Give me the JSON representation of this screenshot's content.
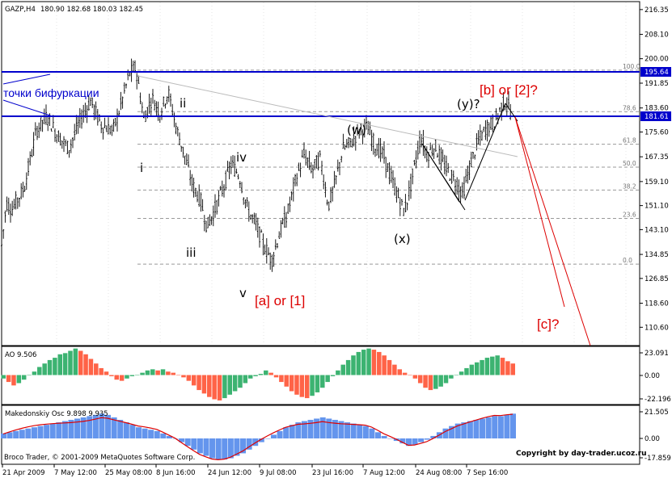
{
  "header": {
    "symbol": "GAZP,H4",
    "ohlc": "180.90 182.68 180.03 182.45"
  },
  "price_axis": {
    "ticks": [
      "216.35",
      "208.10",
      "200.00",
      "191.85",
      "183.60",
      "175.60",
      "167.35",
      "159.10",
      "151.10",
      "143.10",
      "134.85",
      "126.85",
      "118.60",
      "110.60"
    ],
    "tag_upper": "195.64",
    "tag_lower": "181.61"
  },
  "time_axis": [
    "21 Apr 2009",
    "7 May 12:00",
    "25 May 08:00",
    "8 Jun 16:00",
    "24 Jun 12:00",
    "9 Jul 08:00",
    "23 Jul 16:00",
    "7 Aug 12:00",
    "24 Aug 08:00",
    "7 Sep 16:00"
  ],
  "fib_levels": [
    "100.0",
    "78.6",
    "61.8",
    "50.0",
    "38.2",
    "23.6",
    "0.0"
  ],
  "annotations": {
    "bifurcation": "точки бифуркации",
    "wave_i": "i",
    "wave_ii": "ii",
    "wave_iii": "iii",
    "wave_iv": "iv",
    "wave_v": "v",
    "wave_w": "(w)",
    "wave_x": "(x)",
    "wave_y": "(y)?",
    "label_a1": "[a] or [1]",
    "label_b2": "[b] or [2]?",
    "label_c": "[c]?"
  },
  "ao_panel": {
    "title": "AO 9.506",
    "ticks": [
      "23.091",
      "0.00",
      "-22.196"
    ]
  },
  "mk_panel": {
    "title": "Makedonskiy Osc 9.898 9.935",
    "ticks": [
      "21.505",
      "0.00",
      "-17.859"
    ]
  },
  "footer": {
    "broker": "Broco Trader, © 2001-2009 MetaQuotes Software Corp.",
    "copyright": "Copyright by day-trader.ucoz.ru"
  },
  "colors": {
    "background": "#ffffff",
    "candles": "#000000",
    "ao_up": "#3cb371",
    "ao_down": "#ff6347",
    "osc_hist": "#6495ed",
    "osc_signal": "#dd0000",
    "bifurcation_lines": "#0000cc",
    "annotation_red": "#dd0000"
  },
  "chart_data": {
    "type": "candlestick",
    "title": "GAZP,H4",
    "ylim": [
      104.5,
      219.0
    ],
    "price_points": [
      [
        0,
        133
      ],
      [
        8,
        152
      ],
      [
        15,
        150
      ],
      [
        30,
        157
      ],
      [
        45,
        176
      ],
      [
        58,
        181
      ],
      [
        70,
        175
      ],
      [
        85,
        170
      ],
      [
        100,
        180
      ],
      [
        112,
        186
      ],
      [
        125,
        178
      ],
      [
        140,
        176
      ],
      [
        150,
        185
      ],
      [
        160,
        195
      ],
      [
        168,
        197
      ],
      [
        178,
        180
      ],
      [
        188,
        187
      ],
      [
        198,
        182
      ],
      [
        208,
        189
      ],
      [
        218,
        177
      ],
      [
        228,
        168
      ],
      [
        238,
        158
      ],
      [
        248,
        153
      ],
      [
        256,
        144
      ],
      [
        266,
        150
      ],
      [
        276,
        157
      ],
      [
        286,
        165
      ],
      [
        296,
        161
      ],
      [
        306,
        150
      ],
      [
        316,
        145
      ],
      [
        326,
        138
      ],
      [
        336,
        133
      ],
      [
        346,
        142
      ],
      [
        356,
        149
      ],
      [
        366,
        160
      ],
      [
        376,
        168
      ],
      [
        386,
        163
      ],
      [
        396,
        167
      ],
      [
        406,
        151
      ],
      [
        414,
        158
      ],
      [
        424,
        170
      ],
      [
        434,
        172
      ],
      [
        444,
        176
      ],
      [
        454,
        177
      ],
      [
        464,
        171
      ],
      [
        474,
        168
      ],
      [
        484,
        160
      ],
      [
        494,
        153
      ],
      [
        500,
        149
      ],
      [
        508,
        158
      ],
      [
        514,
        166
      ],
      [
        520,
        174
      ],
      [
        528,
        168
      ],
      [
        538,
        171
      ],
      [
        548,
        165
      ],
      [
        558,
        161
      ],
      [
        566,
        158
      ],
      [
        572,
        155
      ],
      [
        582,
        165
      ],
      [
        592,
        173
      ],
      [
        602,
        177
      ],
      [
        612,
        179
      ],
      [
        620,
        184
      ],
      [
        626,
        186
      ],
      [
        632,
        182
      ]
    ],
    "ao_values": [
      -3,
      -6,
      -9,
      -7,
      -4,
      0,
      3,
      7,
      10,
      13,
      15,
      18,
      19,
      21,
      23,
      21,
      18,
      14,
      10,
      6,
      3,
      -1,
      -4,
      -5,
      -3,
      -1,
      0,
      2,
      4,
      5,
      4,
      5,
      3,
      2,
      0,
      -2,
      -5,
      -9,
      -13,
      -16,
      -19,
      -21,
      -22,
      -20,
      -17,
      -14,
      -11,
      -7,
      -3,
      -1,
      1,
      4,
      2,
      -2,
      -6,
      -10,
      -14,
      -17,
      -19,
      -20,
      -18,
      -15,
      -11,
      -6,
      -1,
      4,
      9,
      13,
      17,
      20,
      22,
      23,
      22,
      20,
      17,
      13,
      9,
      5,
      2,
      0,
      -3,
      -7,
      -11,
      -13,
      -12,
      -10,
      -7,
      -3,
      0,
      3,
      6,
      9,
      11,
      13,
      15,
      16,
      17,
      15,
      12,
      10
    ],
    "osc_values": [
      4,
      5,
      6,
      7,
      8,
      9,
      10,
      11,
      12,
      13,
      14,
      15,
      16,
      17,
      18,
      19,
      20,
      19,
      17,
      15,
      13,
      11,
      9,
      8,
      7,
      6,
      4,
      2,
      0,
      -3,
      -6,
      -9,
      -12,
      -14,
      -16,
      -17,
      -17,
      -16,
      -14,
      -12,
      -9,
      -6,
      -3,
      0,
      3,
      6,
      9,
      11,
      13,
      14,
      15,
      16,
      17,
      16,
      15,
      14,
      13,
      12,
      11,
      10,
      8,
      5,
      2,
      0,
      -2,
      -4,
      -6,
      -5,
      -3,
      -1,
      2,
      5,
      8,
      10,
      12,
      13,
      14,
      15,
      16,
      17,
      18,
      18,
      19,
      20
    ]
  }
}
